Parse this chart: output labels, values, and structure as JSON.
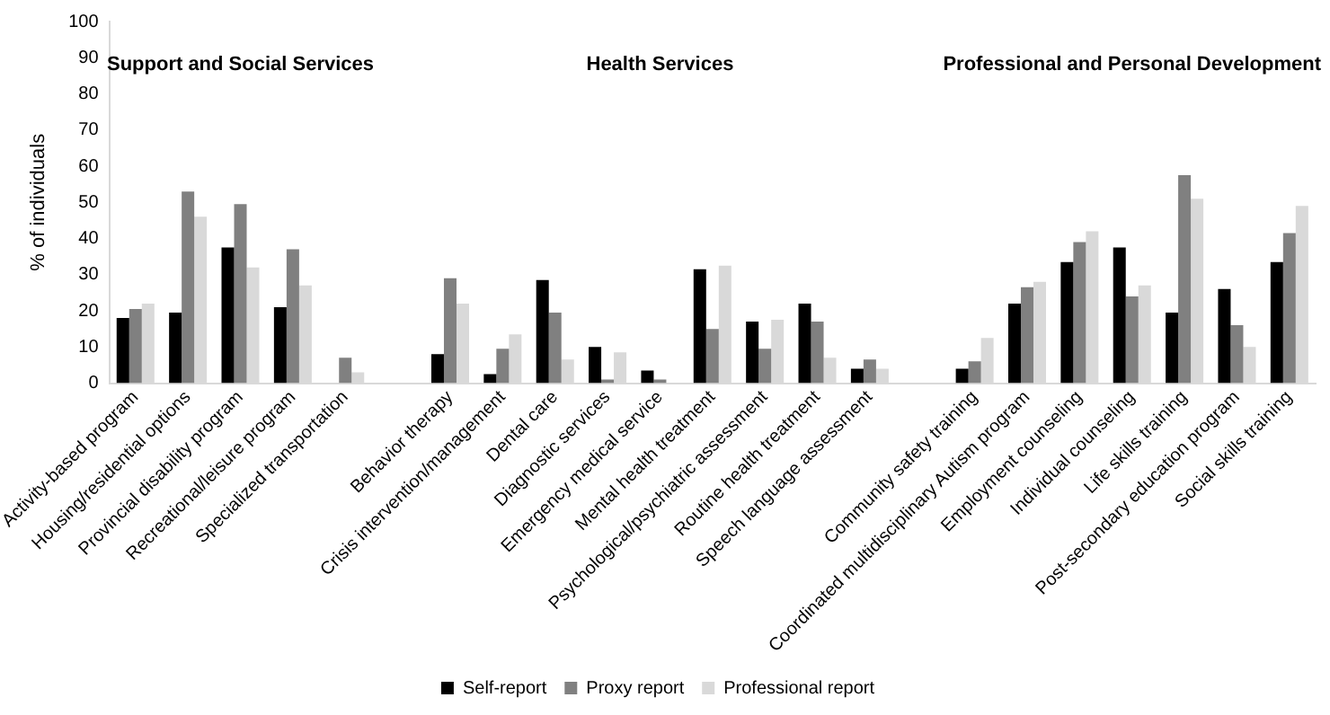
{
  "chart_data": {
    "type": "bar",
    "ylabel": "% of individuals",
    "annotations": [
      "Support and Social Services",
      "Health Services",
      "Professional and Personal Development"
    ],
    "categories": [
      "Activity-based program",
      "Housing/residential options",
      "Provincial disability program",
      "Recreational/leisure program",
      "Specialized transportation",
      null,
      "Behavior therapy",
      "Crisis intervention/management",
      "Dental care",
      "Diagnostic services",
      "Emergency medical service",
      "Mental health treatment",
      "Psychological/psychiatric assessment",
      "Routine health treatment",
      "Speech language assessment",
      null,
      "Community safety training",
      "Coordinated multidisciplinary Autism program",
      "Employment counseling",
      "Individual counseling",
      "Life skills training",
      "Post-secondary education program",
      "Social skills training"
    ],
    "series": [
      {
        "name": "Self-report",
        "color": "#000000",
        "values": [
          18,
          19.5,
          37.5,
          21,
          0,
          null,
          8,
          2.5,
          28.5,
          10,
          3.5,
          31.5,
          17,
          22,
          4,
          null,
          4,
          22,
          33.5,
          37.5,
          19.5,
          26,
          33.5
        ]
      },
      {
        "name": "Proxy report",
        "color": "#808080",
        "values": [
          20.5,
          53,
          49.5,
          37,
          7,
          null,
          29,
          9.5,
          19.5,
          1,
          1,
          15,
          9.5,
          17,
          6.5,
          null,
          6,
          26.5,
          39,
          24,
          57.5,
          16,
          41.5
        ]
      },
      {
        "name": "Professional report",
        "color": "#d9d9d9",
        "values": [
          22,
          46,
          32,
          27,
          3,
          null,
          22,
          13.5,
          6.5,
          8.5,
          0,
          32.5,
          17.5,
          7,
          4,
          null,
          12.5,
          28,
          42,
          27,
          51,
          10,
          49
        ]
      }
    ],
    "ylim": [
      0,
      100
    ],
    "yticks": [
      0,
      10,
      20,
      30,
      40,
      50,
      60,
      70,
      80,
      90,
      100
    ],
    "grid": false,
    "legend": "bottom"
  }
}
